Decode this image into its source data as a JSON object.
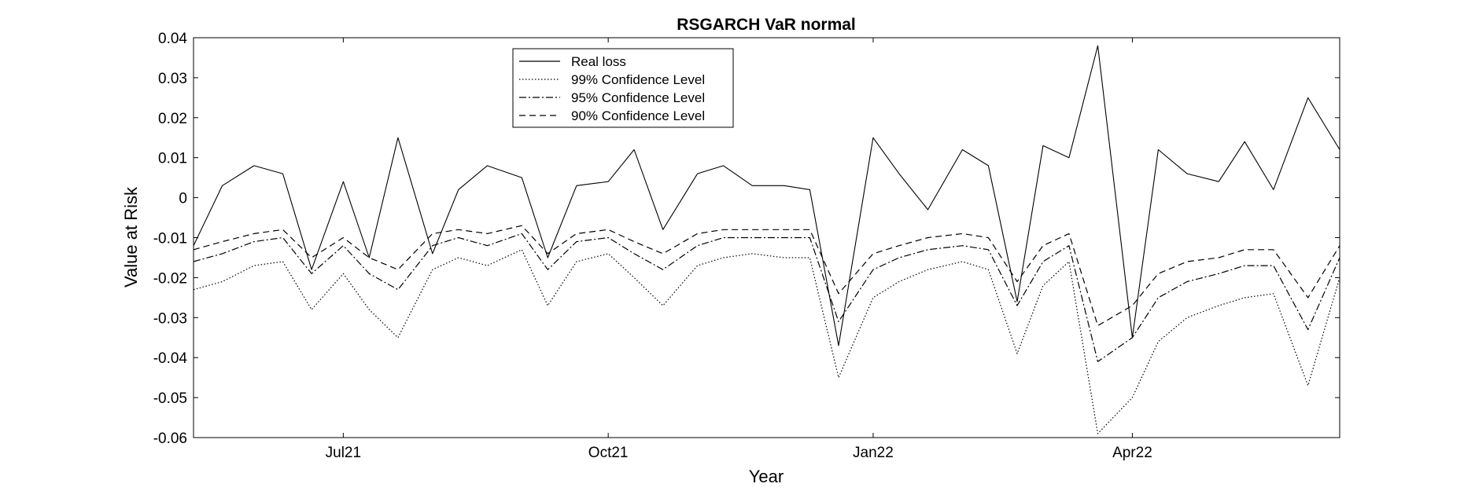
{
  "chart_data": {
    "type": "line",
    "title": "RSGARCH VaR normal",
    "xlabel": "Year",
    "ylabel": "Value at Risk",
    "ylim": [
      -0.06,
      0.04
    ],
    "xlim": [
      "2021-05-10",
      "2022-06-12"
    ],
    "yticks": [
      -0.06,
      -0.05,
      -0.04,
      -0.03,
      -0.02,
      -0.01,
      0,
      0.01,
      0.02,
      0.03,
      0.04
    ],
    "ytick_labels": [
      "-0.06",
      "-0.05",
      "-0.04",
      "-0.03",
      "-0.02",
      "-0.01",
      "0",
      "0.01",
      "0.02",
      "0.03",
      "0.04"
    ],
    "xticks": [
      "2021-07-01",
      "2021-10-01",
      "2022-01-01",
      "2022-04-01"
    ],
    "xtick_labels": [
      "Jul21",
      "Oct21",
      "Jan22",
      "Apr22"
    ],
    "grid": false,
    "legend_position": "top-center",
    "x": [
      "2021-05-10",
      "2021-05-20",
      "2021-05-31",
      "2021-06-10",
      "2021-06-20",
      "2021-07-01",
      "2021-07-10",
      "2021-07-20",
      "2021-08-01",
      "2021-08-10",
      "2021-08-20",
      "2021-09-01",
      "2021-09-10",
      "2021-09-20",
      "2021-10-01",
      "2021-10-10",
      "2021-10-20",
      "2021-11-01",
      "2021-11-10",
      "2021-11-20",
      "2021-12-01",
      "2021-12-10",
      "2021-12-20",
      "2022-01-01",
      "2022-01-10",
      "2022-01-20",
      "2022-02-01",
      "2022-02-10",
      "2022-02-20",
      "2022-03-01",
      "2022-03-10",
      "2022-03-20",
      "2022-04-01",
      "2022-04-10",
      "2022-04-20",
      "2022-05-01",
      "2022-05-10",
      "2022-05-20",
      "2022-06-01",
      "2022-06-12"
    ],
    "series": [
      {
        "name": "Real loss",
        "style": "solid",
        "values": [
          -0.012,
          0.003,
          0.008,
          0.006,
          -0.018,
          0.004,
          -0.015,
          0.015,
          -0.014,
          0.002,
          0.008,
          0.005,
          -0.015,
          0.003,
          0.004,
          0.012,
          -0.008,
          0.006,
          0.008,
          0.003,
          0.003,
          0.002,
          -0.037,
          0.015,
          0.006,
          -0.003,
          0.012,
          0.008,
          -0.026,
          0.013,
          0.01,
          0.038,
          -0.035,
          0.012,
          0.006,
          0.004,
          0.014,
          0.002,
          0.025,
          0.012
        ]
      },
      {
        "name": "99% Confidence Level",
        "style": "dotted",
        "values": [
          -0.023,
          -0.021,
          -0.017,
          -0.016,
          -0.028,
          -0.019,
          -0.028,
          -0.035,
          -0.018,
          -0.015,
          -0.017,
          -0.013,
          -0.027,
          -0.016,
          -0.014,
          -0.02,
          -0.027,
          -0.017,
          -0.015,
          -0.014,
          -0.015,
          -0.015,
          -0.045,
          -0.025,
          -0.021,
          -0.018,
          -0.016,
          -0.018,
          -0.039,
          -0.022,
          -0.016,
          -0.059,
          -0.05,
          -0.036,
          -0.03,
          -0.027,
          -0.025,
          -0.024,
          -0.047,
          -0.02
        ]
      },
      {
        "name": "95% Confidence Level",
        "style": "dashdot",
        "values": [
          -0.016,
          -0.014,
          -0.011,
          -0.01,
          -0.019,
          -0.012,
          -0.019,
          -0.023,
          -0.012,
          -0.01,
          -0.012,
          -0.009,
          -0.018,
          -0.011,
          -0.01,
          -0.014,
          -0.018,
          -0.012,
          -0.01,
          -0.01,
          -0.01,
          -0.01,
          -0.031,
          -0.018,
          -0.015,
          -0.013,
          -0.012,
          -0.013,
          -0.027,
          -0.016,
          -0.012,
          -0.041,
          -0.035,
          -0.025,
          -0.021,
          -0.019,
          -0.017,
          -0.017,
          -0.033,
          -0.015
        ]
      },
      {
        "name": "90% Confidence Level",
        "style": "dashed",
        "values": [
          -0.013,
          -0.011,
          -0.009,
          -0.008,
          -0.015,
          -0.01,
          -0.015,
          -0.018,
          -0.009,
          -0.008,
          -0.009,
          -0.007,
          -0.014,
          -0.009,
          -0.008,
          -0.011,
          -0.014,
          -0.009,
          -0.008,
          -0.008,
          -0.008,
          -0.008,
          -0.024,
          -0.014,
          -0.012,
          -0.01,
          -0.009,
          -0.01,
          -0.021,
          -0.012,
          -0.009,
          -0.032,
          -0.027,
          -0.019,
          -0.016,
          -0.015,
          -0.013,
          -0.013,
          -0.025,
          -0.012
        ]
      }
    ]
  }
}
